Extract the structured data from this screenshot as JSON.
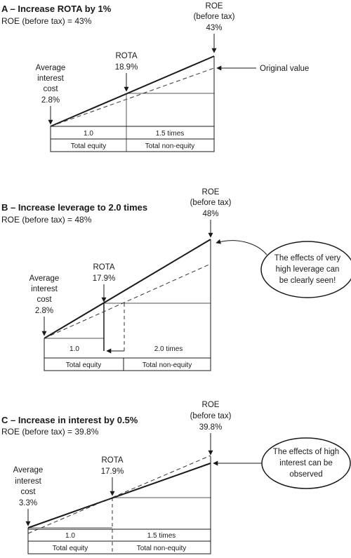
{
  "panels": [
    {
      "title": "A – Increase ROTA by 1%",
      "roe_line": "ROE (before tax) = 43%",
      "roe_header": [
        "ROE",
        "(before tax)",
        "43%"
      ],
      "rota_label": [
        "ROTA",
        "18.9%"
      ],
      "interest_label": [
        "Average",
        "interest",
        "cost",
        "2.8%"
      ],
      "equity_ratio": "1.0",
      "leverage_ratio": "1.5 times",
      "equity_label": "Total equity",
      "nonequity_label": "Total non-equity",
      "annotation": "Original value",
      "callout": []
    },
    {
      "title": "B – Increase leverage to 2.0 times",
      "roe_line": "ROE (before tax) = 48%",
      "roe_header": [
        "ROE",
        "(before tax)",
        "48%"
      ],
      "rota_label": [
        "ROTA",
        "17.9%"
      ],
      "interest_label": [
        "Average",
        "interest",
        "cost",
        "2.8%"
      ],
      "equity_ratio": "1.0",
      "leverage_ratio": "2.0 times",
      "equity_label": "Total equity",
      "nonequity_label": "Total non-equity",
      "annotation": "",
      "callout": [
        "The effects of very",
        "high leverage can",
        "be clearly seen!"
      ]
    },
    {
      "title": "C – Increase in interest by 0.5%",
      "roe_line": "ROE (before tax) = 39.8%",
      "roe_header": [
        "ROE",
        "(before tax)",
        "39.8%"
      ],
      "rota_label": [
        "ROTA",
        "17.9%"
      ],
      "interest_label": [
        "Average",
        "interest",
        "cost",
        "3.3%"
      ],
      "equity_ratio": "1.0",
      "leverage_ratio": "1.5 times",
      "equity_label": "Total equity",
      "nonequity_label": "Total non-equity",
      "annotation": "",
      "callout": [
        "The effects of high",
        "interest can be",
        "observed"
      ]
    }
  ],
  "colors": {
    "ink": "#1a1a1a",
    "dashed": "#333333",
    "thin": "#555555"
  }
}
